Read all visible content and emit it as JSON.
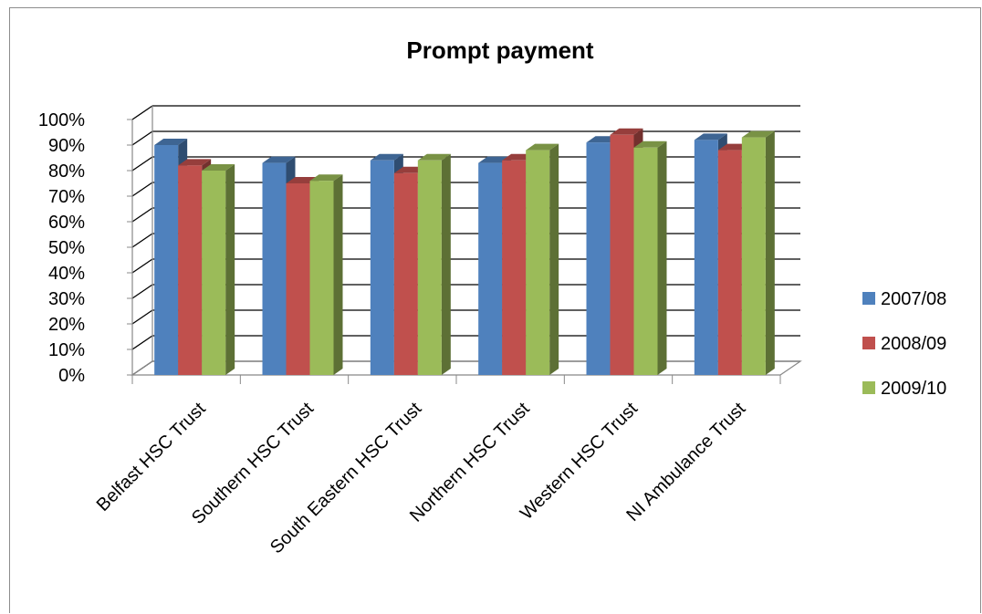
{
  "chart_data": {
    "type": "bar",
    "title": "Prompt payment",
    "categories": [
      "Belfast HSC Trust",
      "Southern HSC Trust",
      "South Eastern HSC Trust",
      "Northern HSC Trust",
      "Western HSC Trust",
      "NI Ambulance Trust"
    ],
    "series": [
      {
        "name": "2007/08",
        "color": "#4f81bd",
        "values": [
          90,
          83,
          84,
          83,
          91,
          92
        ]
      },
      {
        "name": "2008/09",
        "color": "#c0504d",
        "values": [
          82,
          75,
          79,
          84,
          94,
          88
        ]
      },
      {
        "name": "2009/10",
        "color": "#9bbb59",
        "values": [
          80,
          76,
          84,
          88,
          89,
          93
        ]
      }
    ],
    "yticks": [
      "0%",
      "10%",
      "20%",
      "30%",
      "40%",
      "50%",
      "60%",
      "70%",
      "80%",
      "90%",
      "100%"
    ],
    "ylim": [
      0,
      100
    ],
    "grid": true,
    "legend_position": "right",
    "style": "3d-clustered-column"
  }
}
